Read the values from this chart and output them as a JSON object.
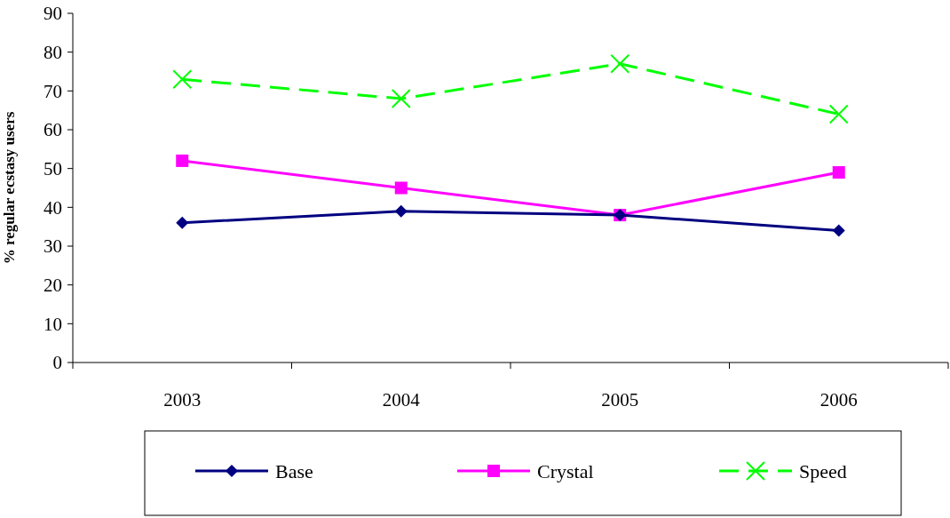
{
  "chart_data": {
    "type": "line",
    "ylabel": "% regular ecstasy users",
    "categories": [
      "2003",
      "2004",
      "2005",
      "2006"
    ],
    "ylim": [
      0,
      90
    ],
    "yticks": [
      0,
      10,
      20,
      30,
      40,
      50,
      60,
      70,
      80,
      90
    ],
    "grid": false,
    "legend": "bottom",
    "series": [
      {
        "name": "Base",
        "color": "#000080",
        "values": [
          36,
          39,
          38,
          34
        ],
        "marker": "diamond",
        "line_style": "solid"
      },
      {
        "name": "Crystal",
        "color": "#ff00ff",
        "values": [
          52,
          45,
          38,
          49
        ],
        "marker": "square",
        "line_style": "solid"
      },
      {
        "name": "Speed",
        "color": "#00ff00",
        "values": [
          73,
          68,
          77,
          64
        ],
        "marker": "cross",
        "line_style": "dashed"
      }
    ]
  }
}
